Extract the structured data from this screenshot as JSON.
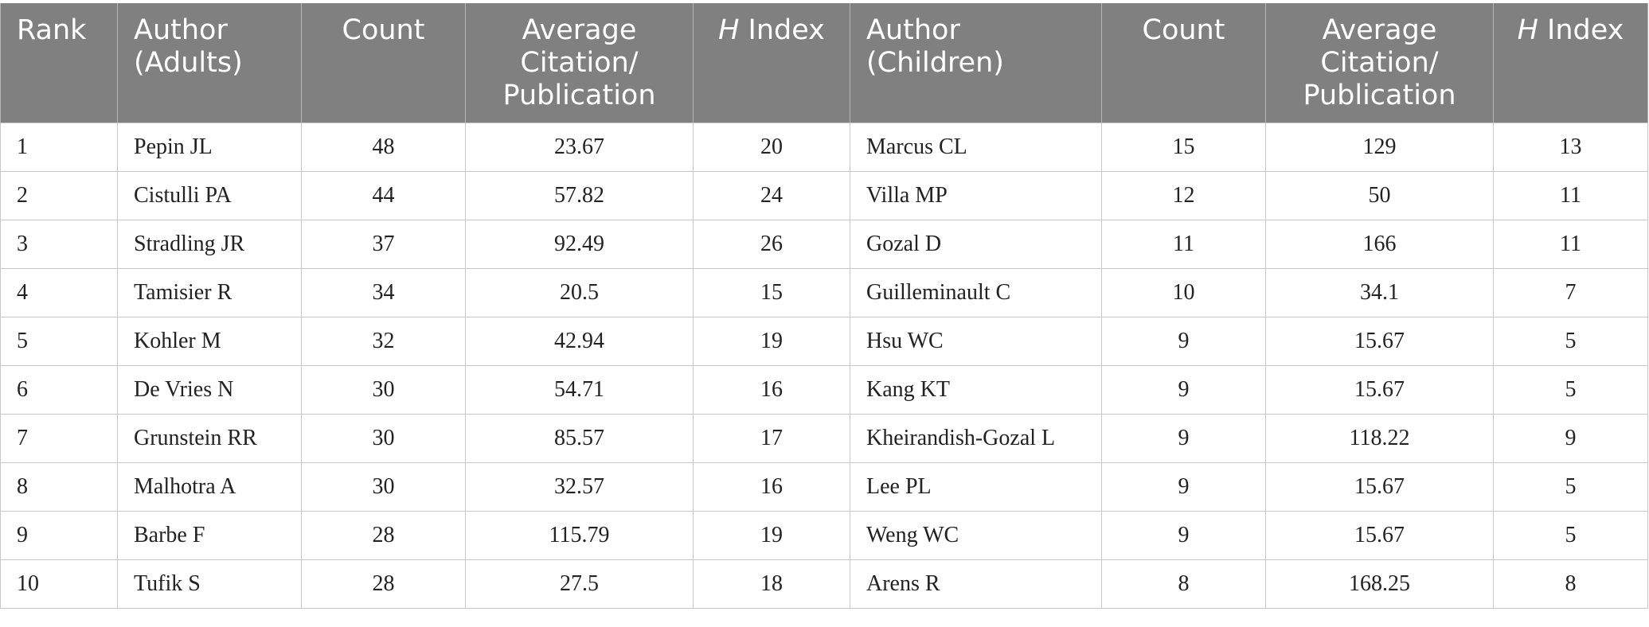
{
  "table": {
    "headers": {
      "rank": "Rank",
      "author_adults": "Author\n(Adults)",
      "count_adults": "Count",
      "avg_adults": "Average\nCitation/\nPublication",
      "h_prefix": "H",
      "h_suffix": " Index",
      "author_children": "Author\n(Children)",
      "count_children": "Count",
      "avg_children": "Average\nCitation/\nPublication"
    },
    "rows": [
      {
        "rank": "1",
        "author_adults": "Pepin JL",
        "count_adults": "48",
        "avg_adults": "23.67",
        "h_adults": "20",
        "author_children": "Marcus CL",
        "count_children": "15",
        "avg_children": "129",
        "h_children": "13"
      },
      {
        "rank": "2",
        "author_adults": "Cistulli PA",
        "count_adults": "44",
        "avg_adults": "57.82",
        "h_adults": "24",
        "author_children": "Villa MP",
        "count_children": "12",
        "avg_children": "50",
        "h_children": "11"
      },
      {
        "rank": "3",
        "author_adults": "Stradling JR",
        "count_adults": "37",
        "avg_adults": "92.49",
        "h_adults": "26",
        "author_children": "Gozal D",
        "count_children": "11",
        "avg_children": "166",
        "h_children": "11"
      },
      {
        "rank": "4",
        "author_adults": "Tamisier R",
        "count_adults": "34",
        "avg_adults": "20.5",
        "h_adults": "15",
        "author_children": "Guilleminault C",
        "count_children": "10",
        "avg_children": "34.1",
        "h_children": "7"
      },
      {
        "rank": "5",
        "author_adults": "Kohler M",
        "count_adults": "32",
        "avg_adults": "42.94",
        "h_adults": "19",
        "author_children": "Hsu WC",
        "count_children": "9",
        "avg_children": "15.67",
        "h_children": "5"
      },
      {
        "rank": "6",
        "author_adults": "De Vries N",
        "count_adults": "30",
        "avg_adults": "54.71",
        "h_adults": "16",
        "author_children": "Kang KT",
        "count_children": "9",
        "avg_children": "15.67",
        "h_children": "5"
      },
      {
        "rank": "7",
        "author_adults": "Grunstein RR",
        "count_adults": "30",
        "avg_adults": "85.57",
        "h_adults": "17",
        "author_children": "Kheirandish-Gozal L",
        "count_children": "9",
        "avg_children": "118.22",
        "h_children": "9"
      },
      {
        "rank": "8",
        "author_adults": "Malhotra A",
        "count_adults": "30",
        "avg_adults": "32.57",
        "h_adults": "16",
        "author_children": "Lee PL",
        "count_children": "9",
        "avg_children": "15.67",
        "h_children": "5"
      },
      {
        "rank": "9",
        "author_adults": "Barbe F",
        "count_adults": "28",
        "avg_adults": "115.79",
        "h_adults": "19",
        "author_children": "Weng WC",
        "count_children": "9",
        "avg_children": "15.67",
        "h_children": "5"
      },
      {
        "rank": "10",
        "author_adults": "Tufik S",
        "count_adults": "28",
        "avg_adults": "27.5",
        "h_adults": "18",
        "author_children": "Arens R",
        "count_children": "8",
        "avg_children": "168.25",
        "h_children": "8"
      }
    ]
  }
}
